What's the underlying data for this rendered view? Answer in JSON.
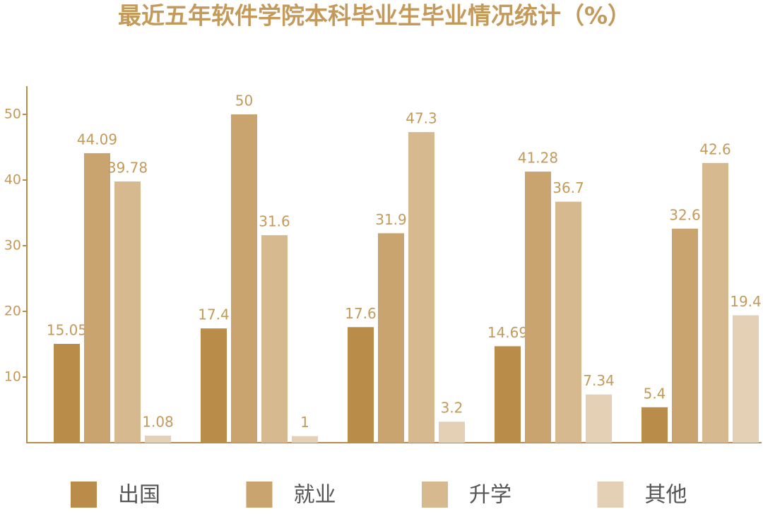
{
  "chart_data": {
    "type": "bar",
    "title": "最近五年软件学院本科毕业生毕业情况统计（%）",
    "categories": [
      null,
      null,
      null,
      null,
      null
    ],
    "series": [
      {
        "name": "出国",
        "color": "#b98c4a",
        "values": [
          15.05,
          17.4,
          17.6,
          14.69,
          5.4
        ]
      },
      {
        "name": "就业",
        "color": "#c9a46e",
        "values": [
          44.09,
          50,
          31.9,
          41.28,
          32.6
        ]
      },
      {
        "name": "升学",
        "color": "#d6b98f",
        "values": [
          39.78,
          31.6,
          47.3,
          36.7,
          42.6
        ]
      },
      {
        "name": "其他",
        "color": "#e4d1b5",
        "values": [
          1.08,
          1,
          3.2,
          7.34,
          19.4
        ]
      }
    ],
    "ylim": [
      0,
      54.3
    ],
    "yticks": [
      10,
      20,
      30,
      40,
      50
    ]
  }
}
